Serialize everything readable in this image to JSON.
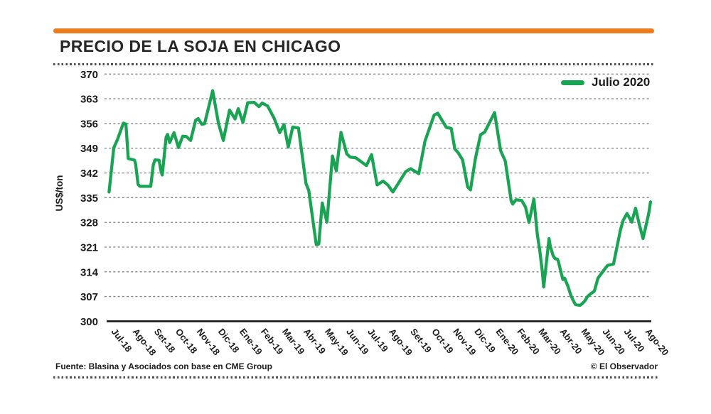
{
  "header": {
    "title": "PRECIO DE LA SOJA EN CHICAGO"
  },
  "legend": {
    "label": "Julio 2020"
  },
  "footer": {
    "source": "Fuente: Blasina y Asociados con base en CME Group",
    "credit": "© El Observador"
  },
  "colors": {
    "accent": "#EB7D20",
    "line": "#18A453",
    "grid": "#888888",
    "axis": "#161616",
    "text": "#1d1d1d"
  },
  "chart_data": {
    "type": "line",
    "title": "PRECIO DE LA SOJA EN CHICAGO",
    "xlabel": "",
    "ylabel": "US$/ton",
    "ylim": [
      300,
      370
    ],
    "yticks": [
      300,
      307,
      314,
      321,
      328,
      335,
      342,
      349,
      356,
      363,
      370
    ],
    "grid": "horizontal-dashed",
    "legend_position": "top-right",
    "categories": [
      "Jul-18",
      "Ago-18",
      "Set-18",
      "Oct-18",
      "Nov-18",
      "Dic-18",
      "Ene-19",
      "Feb-19",
      "Mar-19",
      "Abr-19",
      "May-19",
      "Jun-19",
      "Jul-19",
      "Ago-19",
      "Set-19",
      "Oct-19",
      "Nov-19",
      "Dic-19",
      "Ene-20",
      "Feb-20",
      "Mar-20",
      "Abr-20",
      "May-20",
      "Jun-20",
      "Jul-20",
      "Ago-20"
    ],
    "series": [
      {
        "name": "Julio 2020",
        "color": "#18A453",
        "x_unit": "months-from-Jul-18",
        "points": [
          [
            -0.22,
            336.6
          ],
          [
            0,
            349.1
          ],
          [
            0.17,
            351.4
          ],
          [
            0.45,
            356.1
          ],
          [
            0.57,
            355.8
          ],
          [
            0.68,
            346.1
          ],
          [
            0.97,
            345.6
          ],
          [
            1.02,
            344.7
          ],
          [
            1.14,
            338.8
          ],
          [
            1.22,
            338.2
          ],
          [
            1.73,
            338.2
          ],
          [
            1.85,
            344.3
          ],
          [
            1.93,
            345.7
          ],
          [
            2.12,
            345.6
          ],
          [
            2.22,
            342.3
          ],
          [
            2.27,
            341.4
          ],
          [
            2.45,
            352.1
          ],
          [
            2.52,
            352.9
          ],
          [
            2.62,
            350.6
          ],
          [
            2.82,
            353.4
          ],
          [
            3.03,
            349.2
          ],
          [
            3.23,
            352.4
          ],
          [
            3.4,
            352.3
          ],
          [
            3.6,
            351.2
          ],
          [
            3.83,
            356.9
          ],
          [
            3.95,
            357.4
          ],
          [
            4.12,
            355.8
          ],
          [
            4.25,
            355.9
          ],
          [
            4.63,
            365.3
          ],
          [
            4.9,
            356.1
          ],
          [
            5.13,
            351.2
          ],
          [
            5.42,
            359.8
          ],
          [
            5.68,
            357.3
          ],
          [
            5.83,
            360.2
          ],
          [
            6.05,
            356.3
          ],
          [
            6.27,
            361.9
          ],
          [
            6.57,
            362
          ],
          [
            6.8,
            360.8
          ],
          [
            6.95,
            361.8
          ],
          [
            7.2,
            361
          ],
          [
            7.5,
            357.6
          ],
          [
            7.77,
            353.4
          ],
          [
            7.97,
            355.7
          ],
          [
            8.17,
            349.3
          ],
          [
            8.38,
            355
          ],
          [
            8.65,
            354.7
          ],
          [
            9,
            339
          ],
          [
            9.13,
            337
          ],
          [
            9.48,
            321.7
          ],
          [
            9.6,
            321.9
          ],
          [
            9.76,
            333.5
          ],
          [
            9.98,
            328.1
          ],
          [
            10.24,
            346.8
          ],
          [
            10.42,
            342.6
          ],
          [
            10.64,
            353.5
          ],
          [
            10.91,
            347.4
          ],
          [
            11.07,
            346.5
          ],
          [
            11.33,
            346.3
          ],
          [
            11.83,
            344.1
          ],
          [
            12.07,
            347.2
          ],
          [
            12.33,
            338.6
          ],
          [
            12.61,
            339.7
          ],
          [
            12.83,
            338.6
          ],
          [
            13.07,
            336.6
          ],
          [
            13.67,
            342.4
          ],
          [
            13.9,
            343.2
          ],
          [
            14.28,
            341.8
          ],
          [
            14.57,
            351
          ],
          [
            15,
            358.4
          ],
          [
            15.17,
            358.9
          ],
          [
            15.57,
            354.9
          ],
          [
            15.8,
            354.6
          ],
          [
            15.97,
            348.8
          ],
          [
            16.13,
            347.7
          ],
          [
            16.33,
            345.7
          ],
          [
            16.57,
            338
          ],
          [
            16.7,
            337.2
          ],
          [
            16.93,
            346
          ],
          [
            17.17,
            352.8
          ],
          [
            17.37,
            353.6
          ],
          [
            17.83,
            359.1
          ],
          [
            18.11,
            348.4
          ],
          [
            18.18,
            347.4
          ],
          [
            18.33,
            345.4
          ],
          [
            18.61,
            334
          ],
          [
            18.68,
            333.2
          ],
          [
            18.83,
            334.4
          ],
          [
            19.1,
            334.2
          ],
          [
            19.28,
            332.3
          ],
          [
            19.44,
            328
          ],
          [
            19.67,
            334.6
          ],
          [
            19.83,
            324.6
          ],
          [
            19.94,
            320.3
          ],
          [
            20.06,
            314.3
          ],
          [
            20.13,
            309.7
          ],
          [
            20.38,
            323.4
          ],
          [
            20.44,
            321.2
          ],
          [
            20.57,
            318.6
          ],
          [
            20.67,
            317.7
          ],
          [
            20.77,
            317.6
          ],
          [
            20.82,
            316.9
          ],
          [
            20.94,
            313.9
          ],
          [
            21.03,
            311.8
          ],
          [
            21.11,
            312.2
          ],
          [
            21.27,
            309.8
          ],
          [
            21.39,
            307.5
          ],
          [
            21.5,
            306
          ],
          [
            21.62,
            304.7
          ],
          [
            21.83,
            304.5
          ],
          [
            21.93,
            305
          ],
          [
            22.06,
            305.8
          ],
          [
            22.17,
            306.9
          ],
          [
            22.33,
            307.8
          ],
          [
            22.5,
            308.5
          ],
          [
            22.67,
            312.2
          ],
          [
            22.83,
            313.5
          ],
          [
            23,
            314.9
          ],
          [
            23.12,
            315.8
          ],
          [
            23.4,
            316.2
          ],
          [
            23.57,
            321.3
          ],
          [
            23.73,
            326
          ],
          [
            23.85,
            328.6
          ],
          [
            24.03,
            330.5
          ],
          [
            24.25,
            328.1
          ],
          [
            24.43,
            332
          ],
          [
            24.61,
            327.3
          ],
          [
            24.78,
            323.4
          ],
          [
            25.05,
            330.6
          ],
          [
            25.13,
            333.8
          ]
        ]
      }
    ]
  }
}
